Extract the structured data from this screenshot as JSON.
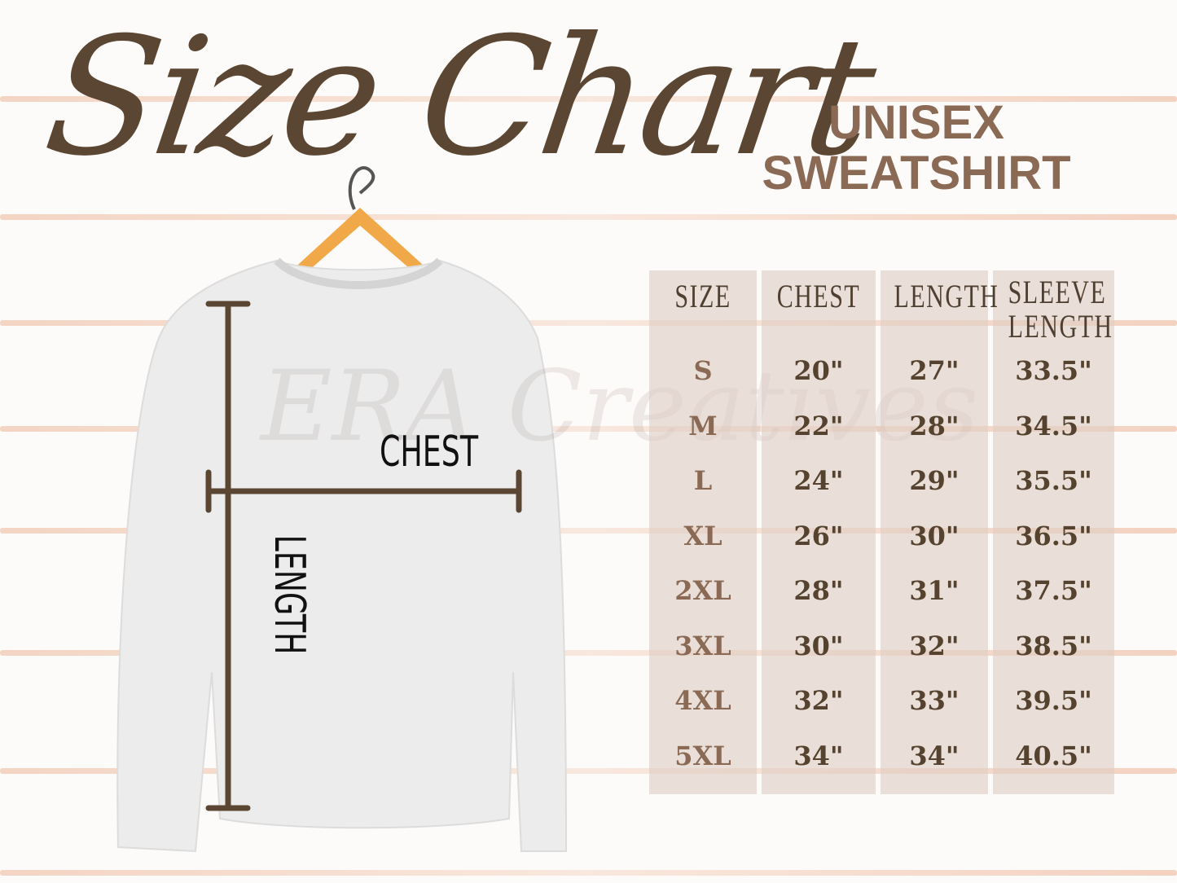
{
  "title": "Size Chart",
  "subtitle": {
    "line1": "UNISEX",
    "line2": "SWEATSHIRT"
  },
  "watermark": "ERA Creatives",
  "colors": {
    "title": "#5a4632",
    "subtitle": "#8b6a55",
    "table_bg": "#e4d6cf",
    "stripe": "#ecb496",
    "measure_line": "#5a4632"
  },
  "diagram": {
    "chest_label": "CHEST",
    "length_label": "LENGTH"
  },
  "table": {
    "headers": [
      "SIZE",
      "CHEST",
      "LENGTH",
      "SLEEVE LENGTH"
    ],
    "sleeve_header": {
      "line1": "SLEEVE",
      "line2": "LENGTH"
    },
    "rows": [
      [
        "S",
        "20\"",
        "27\"",
        "33.5\""
      ],
      [
        "M",
        "22\"",
        "28\"",
        "34.5\""
      ],
      [
        "L",
        "24\"",
        "29\"",
        "35.5\""
      ],
      [
        "XL",
        "26\"",
        "30\"",
        "36.5\""
      ],
      [
        "2XL",
        "28\"",
        "31\"",
        "37.5\""
      ],
      [
        "3XL",
        "30\"",
        "32\"",
        "38.5\""
      ],
      [
        "4XL",
        "32\"",
        "33\"",
        "39.5\""
      ],
      [
        "5XL",
        "34\"",
        "34\"",
        "40.5\""
      ]
    ]
  }
}
